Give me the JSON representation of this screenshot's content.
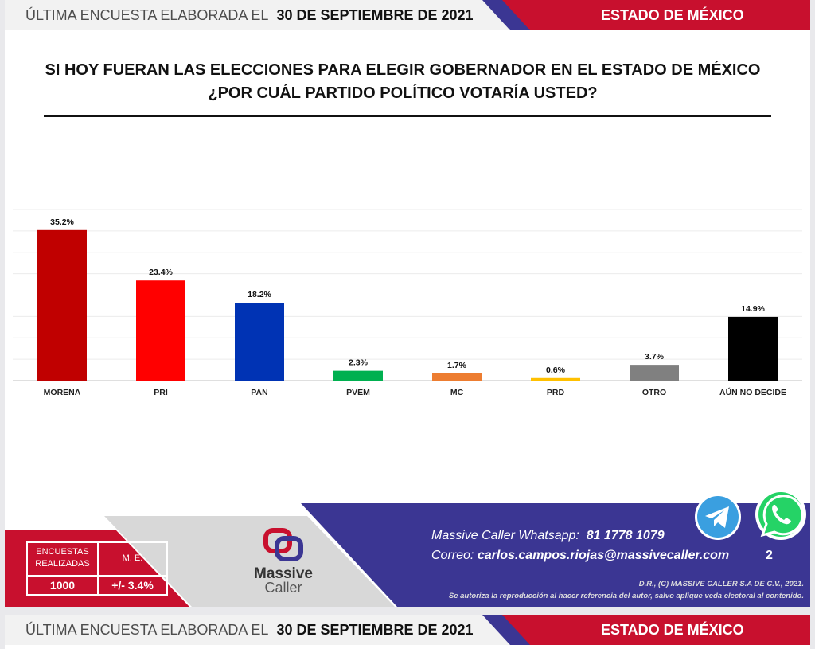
{
  "header": {
    "label": "ÚLTIMA ENCUESTA ELABORADA EL",
    "date": "30 DE SEPTIEMBRE DE 2021",
    "state": "ESTADO DE MÉXICO"
  },
  "question": {
    "line1": "SI HOY FUERAN LAS ELECCIONES PARA ELEGIR GOBERNADOR EN EL ESTADO DE MÉXICO",
    "line2": "¿POR CUÁL PARTIDO POLÍTICO VOTARÍA USTED?"
  },
  "chart_data": {
    "type": "bar",
    "title": "SI HOY FUERAN LAS ELECCIONES PARA ELEGIR GOBERNADOR EN EL ESTADO DE MÉXICO ¿POR CUÁL PARTIDO POLÍTICO VOTARÍA USTED?",
    "categories": [
      "MORENA",
      "PRI",
      "PAN",
      "PVEM",
      "MC",
      "PRD",
      "OTRO",
      "AÚN NO DECIDE"
    ],
    "values": [
      35.2,
      23.4,
      18.2,
      2.3,
      1.7,
      0.6,
      3.7,
      14.9
    ],
    "labels": [
      "35.2%",
      "23.4%",
      "18.2%",
      "2.3%",
      "1.7%",
      "0.6%",
      "3.7%",
      "14.9%"
    ],
    "colors": [
      "#c00000",
      "#ff0000",
      "#0033b4",
      "#00b050",
      "#ed7d31",
      "#ffc000",
      "#808080",
      "#000000"
    ],
    "ylim": [
      0,
      40
    ],
    "grid": true,
    "xlabel": "",
    "ylabel": ""
  },
  "footer": {
    "stats": {
      "polls_label": "ENCUESTAS REALIZADAS",
      "polls_value": "1000",
      "me_label": "M. E.",
      "me_value": "+/- 3.4%"
    },
    "brand_line1": "Massive",
    "brand_line2": "Caller",
    "whatsapp_label": "Massive Caller Whatsapp:",
    "whatsapp_number": "81 1778 1079",
    "email_label": "Correo:",
    "email": "carlos.campos.riojas@massivecaller.com",
    "page_number": "2",
    "copyright": "D.R., (C) MASSIVE CALLER S.A DE C.V., 2021.",
    "notice": "Se autoriza la reproducción al hacer referencia del autor, salvo aplique veda electoral al contenido."
  },
  "next_header": {
    "label": "ÚLTIMA ENCUESTA ELABORADA EL",
    "date": "30 DE SEPTIEMBRE DE 2021",
    "state": "ESTADO DE MÉXICO"
  }
}
